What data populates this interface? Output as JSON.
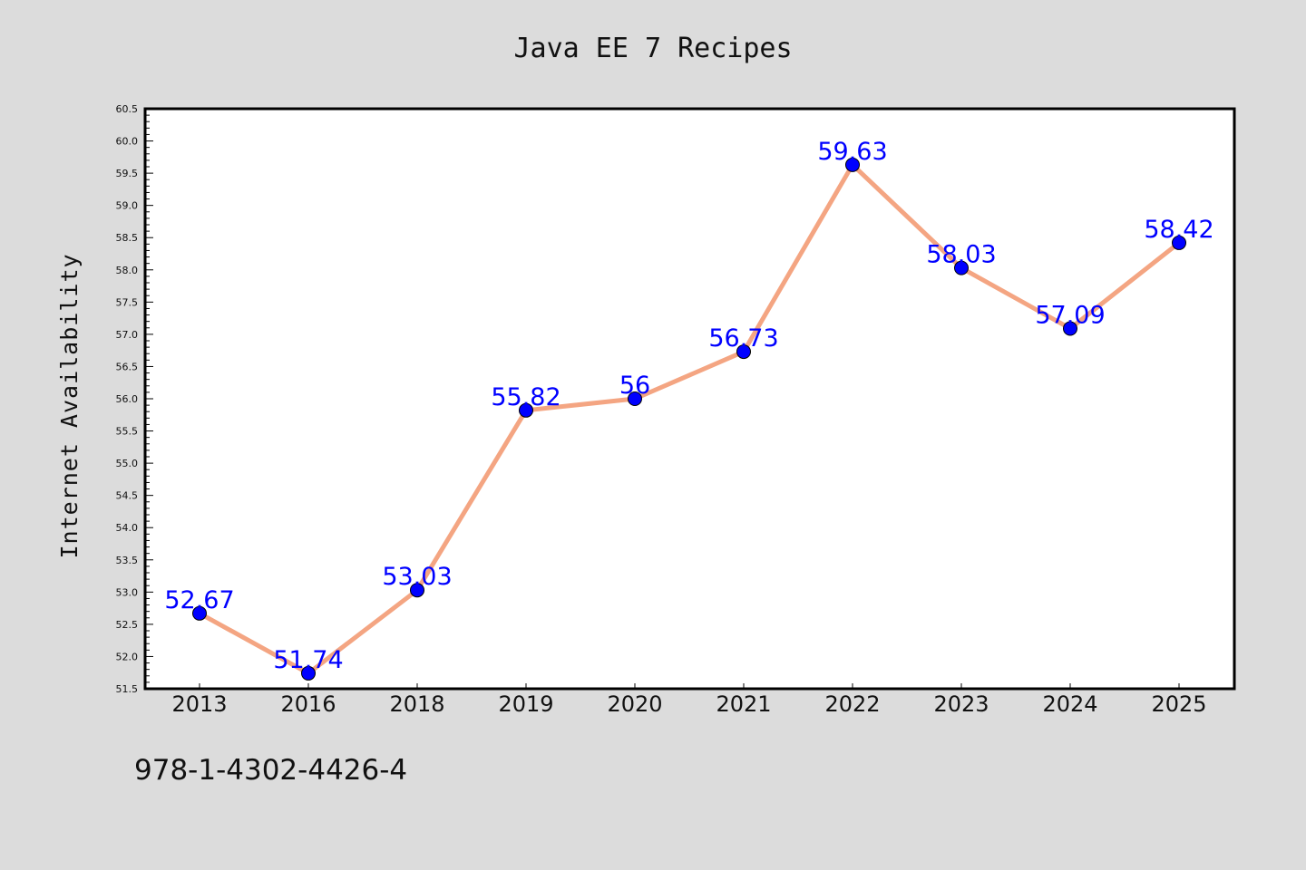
{
  "chart_data": {
    "type": "line",
    "title": "Java EE 7 Recipes",
    "xlabel": "",
    "ylabel": "Internet Availability",
    "categories": [
      "2013",
      "2016",
      "2018",
      "2019",
      "2020",
      "2021",
      "2022",
      "2023",
      "2024",
      "2025"
    ],
    "series": [
      {
        "values": [
          52.67,
          51.74,
          53.03,
          55.82,
          56,
          56.73,
          59.63,
          58.03,
          57.09,
          58.42
        ],
        "data_labels": [
          "52.67",
          "51.74",
          "53.03",
          "55.82",
          "56",
          "56.73",
          "59.63",
          "58.03",
          "57.09",
          "58.42"
        ],
        "line_color": "#f4a582",
        "marker_color": "#0000ff"
      }
    ],
    "ylim": [
      51.5,
      60.5
    ],
    "yticks": [
      "51.5",
      "52.0",
      "52.5",
      "53.0",
      "53.5",
      "54.0",
      "54.5",
      "55.0",
      "55.5",
      "56.0",
      "56.5",
      "57.0",
      "57.5",
      "58.0",
      "58.5",
      "59.0",
      "59.5",
      "60.0",
      "60.5"
    ],
    "grid": false,
    "legend": "none",
    "data_label_color": "#0000ff"
  },
  "footnote": "978-1-4302-4426-4",
  "colors": {
    "background": "#dcdcdc",
    "plot_background": "#ffffff",
    "axis": "#000000"
  }
}
